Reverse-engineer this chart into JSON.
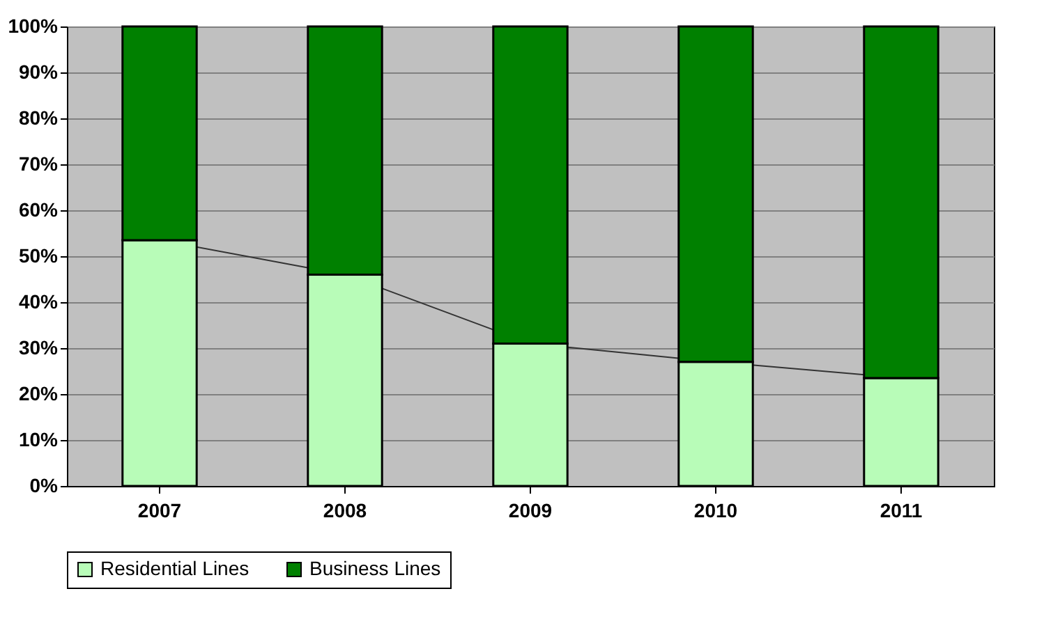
{
  "chart_data": {
    "type": "bar",
    "stacked": true,
    "categories": [
      "2007",
      "2008",
      "2009",
      "2010",
      "2011"
    ],
    "series": [
      {
        "name": "Residential Lines",
        "color": "#b8fcb8",
        "values": [
          53.5,
          46,
          31,
          27,
          23.5
        ]
      },
      {
        "name": "Business Lines",
        "color": "#008000",
        "values": [
          46.5,
          54,
          69,
          73,
          76.5
        ]
      },
      {
        "type": "line",
        "color": "#333333",
        "values": [
          53.5,
          46,
          31,
          27,
          23.5
        ]
      }
    ],
    "ylim": [
      0,
      100
    ],
    "yticks": [
      {
        "value": 0,
        "label": "0%"
      },
      {
        "value": 10,
        "label": "10%"
      },
      {
        "value": 20,
        "label": "20%"
      },
      {
        "value": 30,
        "label": "30%"
      },
      {
        "value": 40,
        "label": "40%"
      },
      {
        "value": 50,
        "label": "50%"
      },
      {
        "value": 60,
        "label": "60%"
      },
      {
        "value": 70,
        "label": "70%"
      },
      {
        "value": 80,
        "label": "80%"
      },
      {
        "value": 90,
        "label": "90%"
      },
      {
        "value": 100,
        "label": "100%"
      }
    ],
    "grid": "y",
    "legend": "bottom"
  }
}
